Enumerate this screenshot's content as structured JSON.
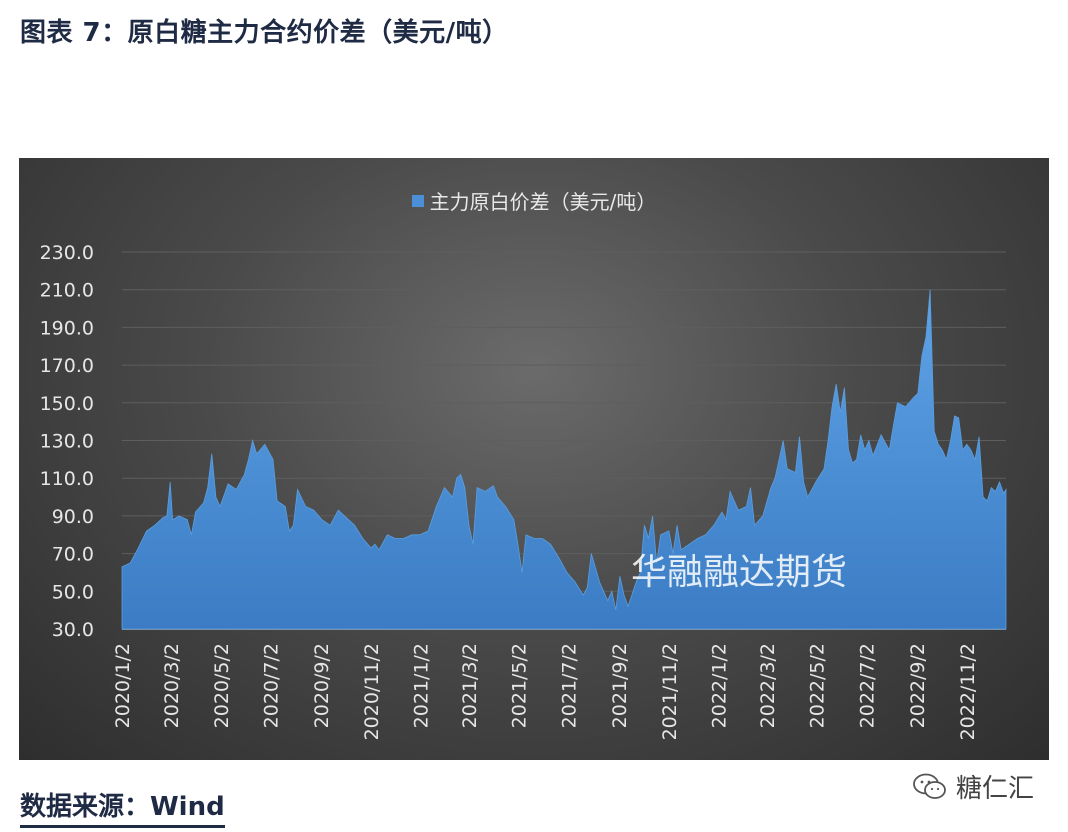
{
  "figure_title": "图表 7：原白糖主力合约价差（美元/吨）",
  "source": "数据来源：Wind",
  "brand": {
    "icon": "wechat-icon",
    "name": "糖仁汇"
  },
  "colors": {
    "area": "#4d8fd6",
    "area_top": "#5a9ee0",
    "axis": "#bfbfbf",
    "grid": "#5e5e5e",
    "text": "#e6e6e6"
  },
  "chart_data": {
    "type": "area",
    "title": "",
    "legend": {
      "position": "top-center",
      "entries": [
        "主力原白价差（美元/吨）"
      ]
    },
    "series": [
      {
        "name": "主力原白价差（美元/吨）",
        "color": "#4d8fd6"
      }
    ],
    "watermark": "华融融达期货",
    "xlabel": "",
    "ylabel": "",
    "ylim": [
      30,
      230
    ],
    "yticks": [
      "230.0",
      "210.0",
      "190.0",
      "170.0",
      "150.0",
      "130.0",
      "110.0",
      "90.0",
      "70.0",
      "50.0",
      "30.0"
    ],
    "xticks": [
      "2020/1/2",
      "2020/3/2",
      "2020/5/2",
      "2020/7/2",
      "2020/9/2",
      "2020/11/2",
      "2021/1/2",
      "2021/3/2",
      "2021/5/2",
      "2021/7/2",
      "2021/9/2",
      "2021/11/2",
      "2022/1/2",
      "2022/3/2",
      "2022/5/2",
      "2022/7/2",
      "2022/9/2",
      "2022/11/2"
    ],
    "grid": true,
    "x_start": "2020-01-02",
    "x_end": "2022-12-20",
    "points": [
      [
        "2020-01-02",
        63
      ],
      [
        "2020-01-12",
        65
      ],
      [
        "2020-01-22",
        73
      ],
      [
        "2020-02-01",
        82
      ],
      [
        "2020-02-11",
        85
      ],
      [
        "2020-02-21",
        89
      ],
      [
        "2020-02-26",
        90
      ],
      [
        "2020-03-01",
        108
      ],
      [
        "2020-03-04",
        88
      ],
      [
        "2020-03-12",
        90
      ],
      [
        "2020-03-22",
        88
      ],
      [
        "2020-03-27",
        80
      ],
      [
        "2020-04-01",
        92
      ],
      [
        "2020-04-11",
        97
      ],
      [
        "2020-04-16",
        105
      ],
      [
        "2020-04-21",
        123
      ],
      [
        "2020-04-26",
        100
      ],
      [
        "2020-05-01",
        95
      ],
      [
        "2020-05-11",
        107
      ],
      [
        "2020-05-21",
        104
      ],
      [
        "2020-05-31",
        112
      ],
      [
        "2020-06-05",
        120
      ],
      [
        "2020-06-10",
        130
      ],
      [
        "2020-06-15",
        123
      ],
      [
        "2020-06-25",
        128
      ],
      [
        "2020-07-05",
        120
      ],
      [
        "2020-07-10",
        98
      ],
      [
        "2020-07-20",
        95
      ],
      [
        "2020-07-25",
        82
      ],
      [
        "2020-07-30",
        85
      ],
      [
        "2020-08-04",
        104
      ],
      [
        "2020-08-14",
        95
      ],
      [
        "2020-08-24",
        93
      ],
      [
        "2020-09-03",
        88
      ],
      [
        "2020-09-13",
        85
      ],
      [
        "2020-09-23",
        93
      ],
      [
        "2020-10-03",
        89
      ],
      [
        "2020-10-13",
        85
      ],
      [
        "2020-10-23",
        78
      ],
      [
        "2020-11-02",
        73
      ],
      [
        "2020-11-07",
        75
      ],
      [
        "2020-11-12",
        72
      ],
      [
        "2020-11-22",
        80
      ],
      [
        "2020-12-02",
        78
      ],
      [
        "2020-12-12",
        78
      ],
      [
        "2020-12-22",
        80
      ],
      [
        "2021-01-01",
        80
      ],
      [
        "2021-01-11",
        82
      ],
      [
        "2021-01-21",
        95
      ],
      [
        "2021-01-31",
        105
      ],
      [
        "2021-02-10",
        100
      ],
      [
        "2021-02-15",
        110
      ],
      [
        "2021-02-20",
        112
      ],
      [
        "2021-02-25",
        105
      ],
      [
        "2021-03-02",
        85
      ],
      [
        "2021-03-07",
        75
      ],
      [
        "2021-03-12",
        105
      ],
      [
        "2021-03-22",
        103
      ],
      [
        "2021-04-01",
        106
      ],
      [
        "2021-04-06",
        100
      ],
      [
        "2021-04-16",
        95
      ],
      [
        "2021-04-26",
        88
      ],
      [
        "2021-05-01",
        75
      ],
      [
        "2021-05-06",
        60
      ],
      [
        "2021-05-11",
        80
      ],
      [
        "2021-05-21",
        78
      ],
      [
        "2021-05-31",
        78
      ],
      [
        "2021-06-10",
        75
      ],
      [
        "2021-06-20",
        68
      ],
      [
        "2021-06-30",
        60
      ],
      [
        "2021-07-10",
        55
      ],
      [
        "2021-07-20",
        48
      ],
      [
        "2021-07-25",
        52
      ],
      [
        "2021-07-30",
        70
      ],
      [
        "2021-08-09",
        55
      ],
      [
        "2021-08-19",
        45
      ],
      [
        "2021-08-24",
        50
      ],
      [
        "2021-08-29",
        40
      ],
      [
        "2021-09-03",
        58
      ],
      [
        "2021-09-08",
        48
      ],
      [
        "2021-09-13",
        42
      ],
      [
        "2021-09-23",
        55
      ],
      [
        "2021-09-28",
        60
      ],
      [
        "2021-10-03",
        85
      ],
      [
        "2021-10-08",
        78
      ],
      [
        "2021-10-13",
        90
      ],
      [
        "2021-10-18",
        65
      ],
      [
        "2021-10-23",
        80
      ],
      [
        "2021-11-02",
        82
      ],
      [
        "2021-11-07",
        70
      ],
      [
        "2021-11-12",
        85
      ],
      [
        "2021-11-17",
        72
      ],
      [
        "2021-11-27",
        75
      ],
      [
        "2021-12-07",
        78
      ],
      [
        "2021-12-17",
        80
      ],
      [
        "2021-12-27",
        85
      ],
      [
        "2022-01-06",
        92
      ],
      [
        "2022-01-11",
        88
      ],
      [
        "2022-01-16",
        103
      ],
      [
        "2022-01-26",
        93
      ],
      [
        "2022-02-05",
        95
      ],
      [
        "2022-02-10",
        105
      ],
      [
        "2022-02-15",
        85
      ],
      [
        "2022-02-25",
        90
      ],
      [
        "2022-03-07",
        105
      ],
      [
        "2022-03-12",
        110
      ],
      [
        "2022-03-17",
        120
      ],
      [
        "2022-03-22",
        130
      ],
      [
        "2022-03-27",
        115
      ],
      [
        "2022-04-06",
        113
      ],
      [
        "2022-04-11",
        132
      ],
      [
        "2022-04-16",
        108
      ],
      [
        "2022-04-21",
        100
      ],
      [
        "2022-05-01",
        108
      ],
      [
        "2022-05-11",
        115
      ],
      [
        "2022-05-16",
        130
      ],
      [
        "2022-05-21",
        148
      ],
      [
        "2022-05-26",
        160
      ],
      [
        "2022-05-31",
        145
      ],
      [
        "2022-06-05",
        158
      ],
      [
        "2022-06-10",
        125
      ],
      [
        "2022-06-15",
        118
      ],
      [
        "2022-06-20",
        120
      ],
      [
        "2022-06-25",
        133
      ],
      [
        "2022-06-30",
        125
      ],
      [
        "2022-07-05",
        130
      ],
      [
        "2022-07-10",
        122
      ],
      [
        "2022-07-20",
        133
      ],
      [
        "2022-07-30",
        125
      ],
      [
        "2022-08-04",
        138
      ],
      [
        "2022-08-09",
        150
      ],
      [
        "2022-08-19",
        148
      ],
      [
        "2022-08-29",
        153
      ],
      [
        "2022-09-03",
        155
      ],
      [
        "2022-09-08",
        175
      ],
      [
        "2022-09-13",
        185
      ],
      [
        "2022-09-18",
        210
      ],
      [
        "2022-09-23",
        135
      ],
      [
        "2022-09-28",
        128
      ],
      [
        "2022-10-03",
        125
      ],
      [
        "2022-10-08",
        120
      ],
      [
        "2022-10-13",
        130
      ],
      [
        "2022-10-18",
        143
      ],
      [
        "2022-10-23",
        142
      ],
      [
        "2022-10-28",
        125
      ],
      [
        "2022-11-02",
        128
      ],
      [
        "2022-11-07",
        125
      ],
      [
        "2022-11-12",
        120
      ],
      [
        "2022-11-17",
        132
      ],
      [
        "2022-11-22",
        100
      ],
      [
        "2022-11-27",
        98
      ],
      [
        "2022-12-02",
        105
      ],
      [
        "2022-12-07",
        103
      ],
      [
        "2022-12-12",
        108
      ],
      [
        "2022-12-17",
        102
      ],
      [
        "2022-12-20",
        104
      ]
    ]
  }
}
